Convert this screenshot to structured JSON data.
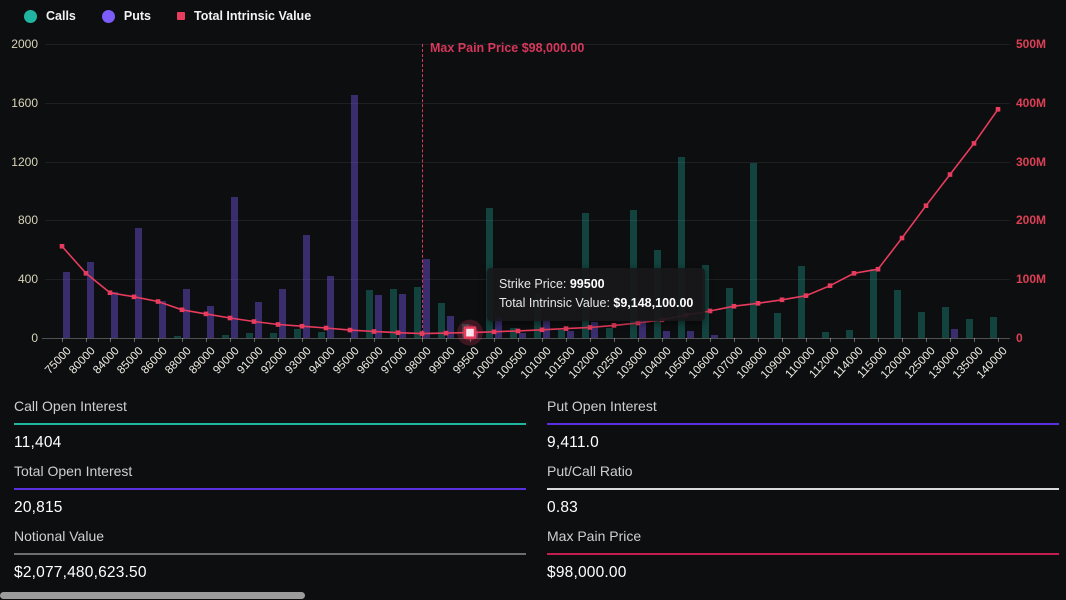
{
  "legend": {
    "items": [
      {
        "label": "Calls",
        "color": "#20b5a2",
        "marker": "circle"
      },
      {
        "label": "Puts",
        "color": "#7c5cfa",
        "marker": "circle"
      },
      {
        "label": "Total Intrinsic Value",
        "color": "#e73c5e",
        "marker": "square"
      }
    ]
  },
  "chart_data": {
    "type": "bar",
    "title": "",
    "categories": [
      "75000",
      "80000",
      "84000",
      "85000",
      "86000",
      "88000",
      "89000",
      "90000",
      "91000",
      "92000",
      "93000",
      "94000",
      "95000",
      "96000",
      "97000",
      "98000",
      "99000",
      "99500",
      "100000",
      "100500",
      "101000",
      "101500",
      "102000",
      "102500",
      "103000",
      "104000",
      "105000",
      "106000",
      "107000",
      "108000",
      "109000",
      "110000",
      "112000",
      "114000",
      "115000",
      "120000",
      "125000",
      "130000",
      "135000",
      "140000"
    ],
    "series": [
      {
        "name": "Calls",
        "type": "bar",
        "axis": "left",
        "values": [
          0,
          0,
          0,
          0,
          0,
          15,
          0,
          20,
          35,
          35,
          60,
          40,
          0,
          325,
          335,
          350,
          240,
          95,
          885,
          65,
          300,
          55,
          850,
          65,
          870,
          600,
          1230,
          500,
          340,
          1190,
          170,
          490,
          40,
          55,
          470,
          325,
          180,
          210,
          130,
          140
        ]
      },
      {
        "name": "Puts",
        "type": "bar",
        "axis": "left",
        "values": [
          450,
          520,
          310,
          750,
          255,
          330,
          215,
          960,
          245,
          330,
          700,
          420,
          1650,
          295,
          300,
          535,
          150,
          50,
          140,
          35,
          125,
          50,
          110,
          0,
          120,
          45,
          45,
          20,
          0,
          0,
          0,
          0,
          0,
          0,
          0,
          0,
          0,
          60,
          0,
          0
        ]
      },
      {
        "name": "Total Intrinsic Value",
        "type": "line",
        "axis": "right",
        "unit": "USD millions",
        "values": [
          156,
          110,
          77,
          70,
          62,
          48,
          41,
          34,
          28,
          23,
          20,
          17,
          13.5,
          11,
          9,
          7.5,
          8.3,
          9.1,
          10.5,
          12,
          14,
          16,
          18,
          21.5,
          25.5,
          31,
          39,
          46,
          54,
          59,
          65,
          72,
          89,
          110,
          117,
          170,
          225,
          278,
          331,
          389
        ]
      }
    ],
    "left_axis": {
      "ticks": [
        0,
        400,
        800,
        1200,
        1600,
        2000
      ],
      "max": 2000
    },
    "right_axis": {
      "ticks": [
        "0",
        "100M",
        "200M",
        "300M",
        "400M",
        "500M"
      ],
      "max_millions": 500
    },
    "annotation": {
      "label": "Max Pain Price $98,000.00",
      "category": "98000",
      "index": 15
    },
    "highlight": {
      "category": "99500",
      "index": 17
    },
    "grid": true,
    "legend_position": "top-left"
  },
  "tooltip": {
    "line1_label": "Strike Price: ",
    "line1_value": "99500",
    "line2_label": "Total Intrinsic Value: ",
    "line2_value": "$9,148,100.00"
  },
  "stats": {
    "items": [
      {
        "label": "Call Open Interest",
        "value": "11,404",
        "accent": "#20b5a2"
      },
      {
        "label": "Put Open Interest",
        "value": "9,411.0",
        "accent": "#5a2fe0"
      },
      {
        "label": "Total Open Interest",
        "value": "20,815",
        "accent": "#5a2fe0"
      },
      {
        "label": "Put/Call Ratio",
        "value": "0.83",
        "accent": "#d9d9d9"
      },
      {
        "label": "Notional Value",
        "value": "$2,077,480,623.50",
        "accent": "#6e6e6e"
      },
      {
        "label": "Max Pain Price",
        "value": "$98,000.00",
        "accent": "#c21d4f"
      }
    ]
  },
  "colors": {
    "background": "#0d0e10",
    "call_bar": "rgba(32,181,162,0.32)",
    "put_bar": "rgba(124,92,250,0.40)",
    "tiv_line": "#e73c5e",
    "left_axis_label": "#d9d3b8",
    "right_axis_label": "#dc4055",
    "max_pain": "#d6365a"
  }
}
